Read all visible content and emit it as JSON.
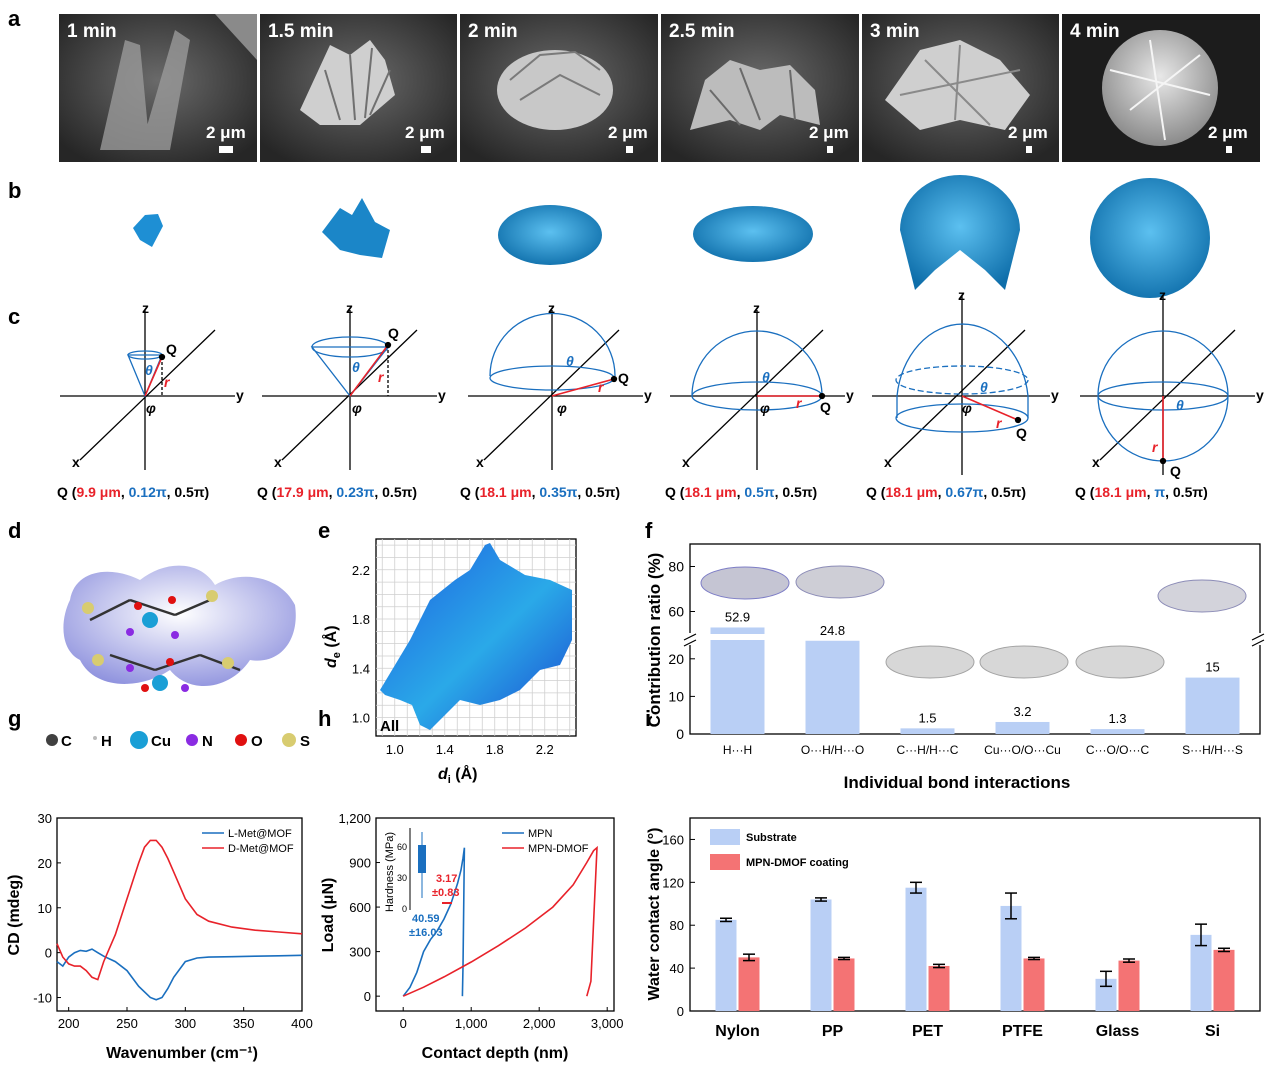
{
  "panel_letters": {
    "a": "a",
    "b": "b",
    "c": "c",
    "d": "d",
    "e": "e",
    "f": "f",
    "g": "g",
    "h": "h",
    "i": "i"
  },
  "panel_a": {
    "tiles": [
      {
        "time": "1 min",
        "scale": "2 μm"
      },
      {
        "time": "1.5 min",
        "scale": "2 μm"
      },
      {
        "time": "2 min",
        "scale": "2 μm"
      },
      {
        "time": "2.5 min",
        "scale": "2 μm"
      },
      {
        "time": "3 min",
        "scale": "2 μm"
      },
      {
        "time": "4 min",
        "scale": "2 μm"
      }
    ]
  },
  "panel_c": {
    "axis_labels": {
      "x": "x",
      "y": "y",
      "z": "z",
      "point": "Q",
      "theta": "θ",
      "phi": "φ",
      "r": "r"
    },
    "coords": [
      {
        "prefix": "Q (",
        "r": "9.9 μm",
        "sep1": ", ",
        "theta": "0.12π",
        "sep2": ", ",
        "phi": "0.5π",
        "suffix": ")"
      },
      {
        "prefix": "Q (",
        "r": "17.9 μm",
        "sep1": ", ",
        "theta": "0.23π",
        "sep2": ", ",
        "phi": "0.5π",
        "suffix": ")"
      },
      {
        "prefix": "Q (",
        "r": "18.1 μm",
        "sep1": ", ",
        "theta": "0.35π",
        "sep2": ", ",
        "phi": "0.5π",
        "suffix": ")"
      },
      {
        "prefix": "Q (",
        "r": "18.1 μm",
        "sep1": ", ",
        "theta": "0.5π",
        "sep2": ", ",
        "phi": "0.5π",
        "suffix": ")"
      },
      {
        "prefix": "Q (",
        "r": "18.1 μm",
        "sep1": ", ",
        "theta": "0.67π",
        "sep2": ", ",
        "phi": "0.5π",
        "suffix": ")"
      },
      {
        "prefix": "Q (",
        "r": "18.1 μm",
        "sep1": ", ",
        "theta": "π",
        "sep2": ", ",
        "phi": "0.5π",
        "suffix": ")"
      }
    ]
  },
  "panel_d": {
    "legend": [
      {
        "symbol": "C",
        "color": "#404040"
      },
      {
        "symbol": "H",
        "color": "#bbbbbb"
      },
      {
        "symbol": "Cu",
        "color": "#1a9fd6"
      },
      {
        "symbol": "N",
        "color": "#8a2be2"
      },
      {
        "symbol": "O",
        "color": "#e01010"
      },
      {
        "symbol": "S",
        "color": "#d8cc70"
      }
    ]
  },
  "colors": {
    "red": "#e8222a",
    "blue": "#1a6fbf",
    "bar_blue": "#b9cff5",
    "bar_red": "#f47374",
    "point_cloud": "#1e5ee0"
  },
  "chart_data": [
    {
      "panel": "e",
      "type": "scatter",
      "subtype": "fingerprint plot",
      "xlabel": "d",
      "xlabel_sub": "i",
      "xlabel_unit": " (Å)",
      "ylabel": "d",
      "ylabel_sub": "e",
      "ylabel_unit": " (Å)",
      "xlim": [
        0.85,
        2.45
      ],
      "ylim": [
        0.85,
        2.45
      ],
      "xticks": [
        1.0,
        1.4,
        1.8,
        2.2
      ],
      "yticks": [
        1.0,
        1.4,
        1.8,
        2.2
      ],
      "tick_labels": [
        "1.0",
        "1.4",
        "1.8",
        "2.2"
      ],
      "grid": true,
      "annotation": "All"
    },
    {
      "panel": "f",
      "type": "bar",
      "ylabel": "Contribution  ratio (%)",
      "xlabel": "Individual bond interactions",
      "categories": [
        "H···H",
        "O···H/H···O",
        "C···H/H···C",
        "Cu···O/O···Cu",
        "C···O/O···C",
        "S···H/H···S"
      ],
      "values": [
        52.9,
        24.8,
        1.5,
        3.2,
        1.3,
        15
      ],
      "value_labels": [
        "52.9",
        "24.8",
        "1.5",
        "3.2",
        "1.3",
        "15"
      ],
      "y_axis_broken": true,
      "ylim_lower": [
        0,
        25
      ],
      "ylim_upper": [
        50,
        90
      ],
      "yticks_lower": [
        "0",
        "10",
        "20"
      ],
      "yticks_upper": [
        "60",
        "80"
      ]
    },
    {
      "panel": "g",
      "type": "line",
      "xlabel": "Wavenumber (cm⁻¹)",
      "ylabel": "CD (mdeg)",
      "xlim": [
        190,
        400
      ],
      "ylim": [
        -13,
        30
      ],
      "xticks": [
        "200",
        "250",
        "300",
        "350",
        "400"
      ],
      "yticks": [
        "-10",
        "0",
        "10",
        "20",
        "30"
      ],
      "legend_position": "top-right",
      "series": [
        {
          "name": "L-Met@MOF",
          "color": "#1a6fbf",
          "x": [
            190,
            195,
            200,
            205,
            210,
            215,
            220,
            225,
            230,
            240,
            250,
            260,
            270,
            275,
            280,
            285,
            290,
            300,
            310,
            320,
            340,
            360,
            380,
            400
          ],
          "y": [
            -2,
            -3,
            -1,
            0,
            0.5,
            0.3,
            0.8,
            0,
            -0.8,
            -2,
            -4,
            -7.5,
            -10,
            -10.5,
            -10,
            -8,
            -5.5,
            -2,
            -1.2,
            -1,
            -0.9,
            -0.8,
            -0.7,
            -0.6
          ]
        },
        {
          "name": "D-Met@MOF",
          "color": "#e8222a",
          "x": [
            190,
            195,
            200,
            205,
            210,
            215,
            220,
            225,
            230,
            240,
            250,
            260,
            265,
            270,
            275,
            280,
            285,
            290,
            300,
            310,
            320,
            340,
            360,
            380,
            400
          ],
          "y": [
            2,
            -1,
            -2.5,
            -3,
            -3,
            -4,
            -5.5,
            -6,
            -2,
            4,
            12,
            20,
            23.5,
            25,
            25,
            23.5,
            21,
            18,
            12,
            8.5,
            7,
            5.7,
            5,
            4.6,
            4.2
          ]
        }
      ]
    },
    {
      "panel": "h",
      "type": "line",
      "xlabel": "Contact depth (nm)",
      "ylabel": "Load (μN)",
      "xlim": [
        -400,
        3100
      ],
      "ylim": [
        -100,
        1200
      ],
      "xticks": [
        "0",
        "1,000",
        "2,000",
        "3,000"
      ],
      "yticks": [
        "0",
        "300",
        "600",
        "900",
        "1,200"
      ],
      "legend_position": "top-right",
      "series": [
        {
          "name": "MPN",
          "color": "#1a6fbf",
          "x": [
            0,
            100,
            200,
            300,
            400,
            500,
            600,
            700,
            800,
            850,
            880,
            900,
            880,
            870
          ],
          "y": [
            0,
            60,
            160,
            300,
            380,
            440,
            520,
            620,
            760,
            850,
            930,
            1000,
            200,
            0
          ]
        },
        {
          "name": "MPN-DMOF",
          "color": "#e8222a",
          "x": [
            0,
            300,
            600,
            1000,
            1400,
            1800,
            2200,
            2500,
            2700,
            2800,
            2850,
            2800,
            2760,
            2700
          ],
          "y": [
            0,
            60,
            130,
            230,
            340,
            460,
            600,
            750,
            900,
            980,
            1000,
            500,
            100,
            0
          ]
        }
      ],
      "inset": {
        "ylabel": "Hardness (MPa)",
        "yticks": [
          "0",
          "30",
          "60"
        ],
        "values": [
          {
            "label": "40.59",
            "err": "±16.03",
            "color": "#1a6fbf"
          },
          {
            "label": "3.17",
            "err": "±0.83",
            "color": "#e8222a"
          }
        ]
      }
    },
    {
      "panel": "i",
      "type": "bar",
      "ylabel": "Water contact angle (°)",
      "xlabel": "",
      "categories": [
        "Nylon",
        "PP",
        "PET",
        "PTFE",
        "Glass",
        "Si"
      ],
      "ylim": [
        0,
        180
      ],
      "yticks": [
        "0",
        "40",
        "80",
        "120",
        "160"
      ],
      "legend_position": "top-left",
      "series": [
        {
          "name": "Substrate",
          "color": "#b9cff5",
          "values": [
            85,
            104,
            115,
            98,
            30,
            71
          ],
          "errors": [
            1.5,
            1.5,
            5,
            12,
            7,
            10
          ]
        },
        {
          "name": "MPN-DMOF coating",
          "color": "#f47374",
          "values": [
            50,
            49,
            42,
            49,
            47,
            57
          ],
          "errors": [
            3,
            1,
            1.5,
            1,
            1.5,
            1.5
          ]
        }
      ]
    }
  ]
}
